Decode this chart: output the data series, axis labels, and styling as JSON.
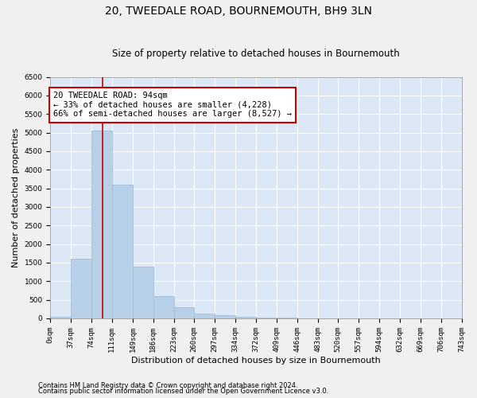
{
  "title": "20, TWEEDALE ROAD, BOURNEMOUTH, BH9 3LN",
  "subtitle": "Size of property relative to detached houses in Bournemouth",
  "xlabel": "Distribution of detached houses by size in Bournemouth",
  "ylabel": "Number of detached properties",
  "footnote1": "Contains HM Land Registry data © Crown copyright and database right 2024.",
  "footnote2": "Contains public sector information licensed under the Open Government Licence v3.0.",
  "bar_edges": [
    0,
    37,
    74,
    111,
    149,
    186,
    223,
    260,
    297,
    334,
    372,
    409,
    446,
    483,
    520,
    557,
    594,
    632,
    669,
    706,
    743
  ],
  "bar_heights": [
    50,
    1600,
    5050,
    3600,
    1400,
    600,
    300,
    130,
    80,
    50,
    30,
    15,
    10,
    5,
    3,
    2,
    2,
    1,
    1,
    1
  ],
  "bar_color": "#b8cfe8",
  "bar_edge_color": "#9ab8d8",
  "vline_x": 94,
  "vline_color": "#cc0000",
  "ylim": [
    0,
    6500
  ],
  "yticks": [
    0,
    500,
    1000,
    1500,
    2000,
    2500,
    3000,
    3500,
    4000,
    4500,
    5000,
    5500,
    6000,
    6500
  ],
  "annotation_box_text": "20 TWEEDALE ROAD: 94sqm\n← 33% of detached houses are smaller (4,228)\n66% of semi-detached houses are larger (8,527) →",
  "annotation_box_color": "#cc0000",
  "bg_color": "#dce8f5",
  "grid_color": "#ffffff",
  "fig_bg_color": "#f0f0f0",
  "title_fontsize": 10,
  "subtitle_fontsize": 8.5,
  "tick_label_fontsize": 6.5,
  "axis_label_fontsize": 8,
  "annotation_fontsize": 7.5,
  "footnote_fontsize": 6
}
